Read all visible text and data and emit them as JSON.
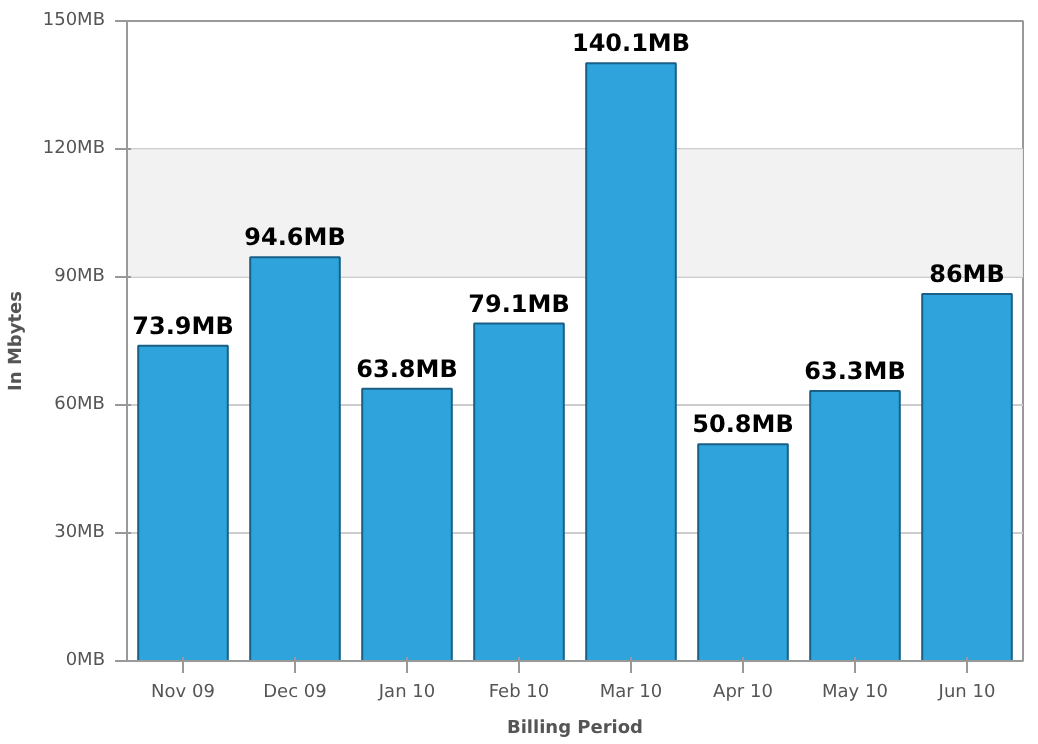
{
  "chart_data": {
    "type": "bar",
    "xlabel": "Billing Period",
    "ylabel": "In Mbytes",
    "categories": [
      "Nov 09",
      "Dec 09",
      "Jan 10",
      "Feb 10",
      "Mar 10",
      "Apr 10",
      "May 10",
      "Jun 10"
    ],
    "values": [
      73.9,
      94.6,
      63.8,
      79.1,
      140.1,
      50.8,
      63.3,
      86
    ],
    "value_labels": [
      "73.9MB",
      "94.6MB",
      "63.8MB",
      "79.1MB",
      "140.1MB",
      "50.8MB",
      "63.3MB",
      "86MB"
    ],
    "color": "#2ea3dc",
    "ylim": [
      0,
      150
    ],
    "yticks": [
      {
        "value": 0,
        "label": "0MB"
      },
      {
        "value": 30,
        "label": "30MB"
      },
      {
        "value": 60,
        "label": "60MB"
      },
      {
        "value": 90,
        "label": "90MB"
      },
      {
        "value": 120,
        "label": "120MB"
      },
      {
        "value": 150,
        "label": "150MB"
      }
    ],
    "bands": [
      {
        "axis": "y",
        "from": 90,
        "to": 120,
        "label": null,
        "color": "#f2f2f2"
      }
    ],
    "grid": "y"
  }
}
